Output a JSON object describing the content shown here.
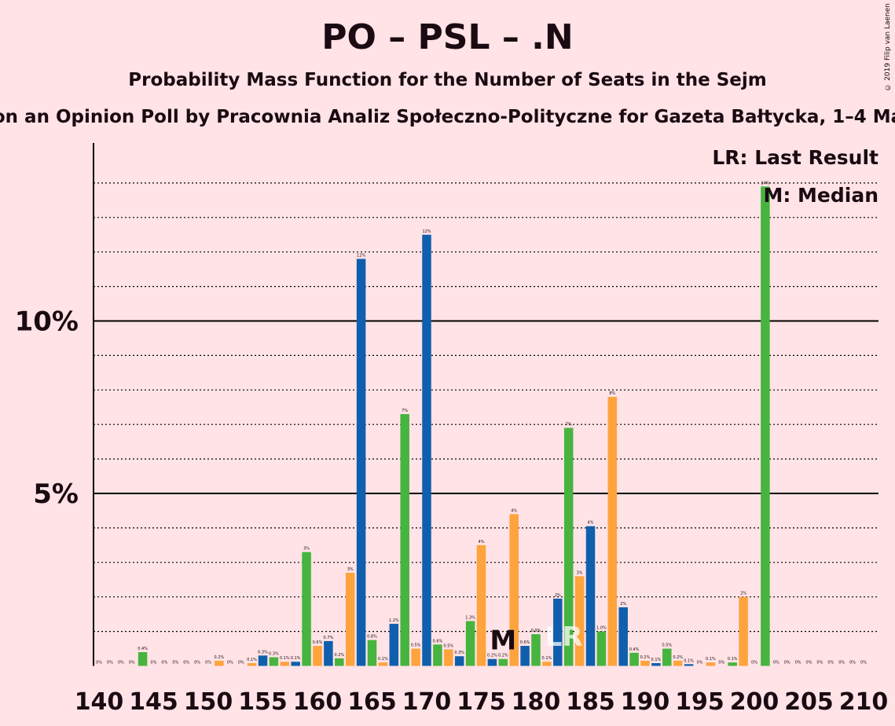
{
  "header": {
    "title": "PO – PSL – .N",
    "subtitle": "Probability Mass Function for the Number of Seats in the Sejm",
    "caption": "on an Opinion Poll by Pracownia Analiz Społeczno-Polityczne for Gazeta Bałtycka, 1–4 Ma",
    "copyright": "© 2019 Filip van Laenen"
  },
  "chart_data": {
    "type": "bar",
    "title": "PO – PSL – .N",
    "xlabel": "",
    "ylabel": "",
    "ylim": [
      0,
      15
    ],
    "y_ticks": [
      {
        "value": 5,
        "label": "5%"
      },
      {
        "value": 10,
        "label": "10%"
      }
    ],
    "x_ticks": [
      140,
      145,
      150,
      155,
      160,
      165,
      170,
      175,
      180,
      185,
      190,
      195,
      200,
      205,
      210
    ],
    "grid": "dotted at each 1%, solid at 5% and 10%",
    "legend_position": "top-right",
    "legend": [
      "LR: Last Result",
      "M: Median"
    ],
    "median_seat": 177,
    "last_result_seat": 183,
    "colors": [
      "#0f5fad",
      "#46b43e",
      "#ffa33c"
    ],
    "bars": [
      {
        "seat": 140,
        "value": 0.0,
        "label": "0%"
      },
      {
        "seat": 141,
        "value": 0.0,
        "label": "0%"
      },
      {
        "seat": 142,
        "value": 0.0,
        "label": "0%"
      },
      {
        "seat": 143,
        "value": 0.0,
        "label": "0%"
      },
      {
        "seat": 144,
        "value": 0.4,
        "label": "0.4%"
      },
      {
        "seat": 145,
        "value": 0.0,
        "label": "0%"
      },
      {
        "seat": 146,
        "value": 0.0,
        "label": "0%"
      },
      {
        "seat": 147,
        "value": 0.0,
        "label": "0%"
      },
      {
        "seat": 148,
        "value": 0.0,
        "label": "0%"
      },
      {
        "seat": 149,
        "value": 0.0,
        "label": "0%"
      },
      {
        "seat": 150,
        "value": 0.0,
        "label": "0%"
      },
      {
        "seat": 151,
        "value": 0.15,
        "label": "0.2%"
      },
      {
        "seat": 152,
        "value": 0.0,
        "label": "0%"
      },
      {
        "seat": 153,
        "value": 0.0,
        "label": "0%"
      },
      {
        "seat": 154,
        "value": 0.08,
        "label": "0.1%"
      },
      {
        "seat": 155,
        "value": 0.3,
        "label": "0.3%"
      },
      {
        "seat": 156,
        "value": 0.25,
        "label": "0.3%"
      },
      {
        "seat": 157,
        "value": 0.12,
        "label": "0.1%"
      },
      {
        "seat": 158,
        "value": 0.12,
        "label": "0.1%"
      },
      {
        "seat": 159,
        "value": 3.3,
        "label": "3%"
      },
      {
        "seat": 160,
        "value": 0.58,
        "label": "0.6%"
      },
      {
        "seat": 161,
        "value": 0.72,
        "label": "0.7%"
      },
      {
        "seat": 162,
        "value": 0.22,
        "label": "0.2%"
      },
      {
        "seat": 163,
        "value": 2.7,
        "label": "3%"
      },
      {
        "seat": 164,
        "value": 11.8,
        "label": "12%"
      },
      {
        "seat": 165,
        "value": 0.75,
        "label": "0.8%"
      },
      {
        "seat": 166,
        "value": 0.1,
        "label": "0.1%"
      },
      {
        "seat": 167,
        "value": 1.22,
        "label": "1.2%"
      },
      {
        "seat": 168,
        "value": 7.3,
        "label": "7%"
      },
      {
        "seat": 169,
        "value": 0.5,
        "label": "0.5%"
      },
      {
        "seat": 170,
        "value": 12.5,
        "label": "12%"
      },
      {
        "seat": 171,
        "value": 0.62,
        "label": "0.6%"
      },
      {
        "seat": 172,
        "value": 0.48,
        "label": "0.5%"
      },
      {
        "seat": 173,
        "value": 0.28,
        "label": "0.3%"
      },
      {
        "seat": 174,
        "value": 1.3,
        "label": "1.3%"
      },
      {
        "seat": 175,
        "value": 3.5,
        "label": "4%"
      },
      {
        "seat": 176,
        "value": 0.2,
        "label": "0.2%"
      },
      {
        "seat": 177,
        "value": 0.2,
        "label": "0.2%"
      },
      {
        "seat": 178,
        "value": 4.4,
        "label": "4%"
      },
      {
        "seat": 179,
        "value": 0.58,
        "label": "0.6%"
      },
      {
        "seat": 180,
        "value": 0.92,
        "label": "0.9%"
      },
      {
        "seat": 181,
        "value": 0.12,
        "label": "0.1%"
      },
      {
        "seat": 182,
        "value": 1.95,
        "label": "2%"
      },
      {
        "seat": 183,
        "value": 6.9,
        "label": "7%"
      },
      {
        "seat": 184,
        "value": 2.6,
        "label": "3%"
      },
      {
        "seat": 185,
        "value": 4.05,
        "label": "4%"
      },
      {
        "seat": 186,
        "value": 1.0,
        "label": "1.0%"
      },
      {
        "seat": 187,
        "value": 7.8,
        "label": "8%"
      },
      {
        "seat": 188,
        "value": 1.7,
        "label": "2%"
      },
      {
        "seat": 189,
        "value": 0.38,
        "label": "0.4%"
      },
      {
        "seat": 190,
        "value": 0.15,
        "label": "0.2%"
      },
      {
        "seat": 191,
        "value": 0.08,
        "label": "0.1%"
      },
      {
        "seat": 192,
        "value": 0.5,
        "label": "0.5%"
      },
      {
        "seat": 193,
        "value": 0.15,
        "label": "0.2%"
      },
      {
        "seat": 194,
        "value": 0.05,
        "label": "0.1%"
      },
      {
        "seat": 195,
        "value": 0.0,
        "label": "0%"
      },
      {
        "seat": 196,
        "value": 0.1,
        "label": "0.1%"
      },
      {
        "seat": 197,
        "value": 0.0,
        "label": "0%"
      },
      {
        "seat": 198,
        "value": 0.1,
        "label": "0.1%"
      },
      {
        "seat": 199,
        "value": 2.0,
        "label": "2%"
      },
      {
        "seat": 200,
        "value": 0.0,
        "label": "0%"
      },
      {
        "seat": 201,
        "value": 13.9,
        "label": "14%"
      },
      {
        "seat": 202,
        "value": 0.0,
        "label": "0%"
      },
      {
        "seat": 203,
        "value": 0.0,
        "label": "0%"
      },
      {
        "seat": 204,
        "value": 0.0,
        "label": "0%"
      },
      {
        "seat": 205,
        "value": 0.0,
        "label": "0%"
      },
      {
        "seat": 206,
        "value": 0.0,
        "label": "0%"
      },
      {
        "seat": 207,
        "value": 0.0,
        "label": "0%"
      },
      {
        "seat": 208,
        "value": 0.0,
        "label": "0%"
      },
      {
        "seat": 209,
        "value": 0.0,
        "label": "0%"
      },
      {
        "seat": 210,
        "value": 0.0,
        "label": "0%"
      }
    ]
  }
}
